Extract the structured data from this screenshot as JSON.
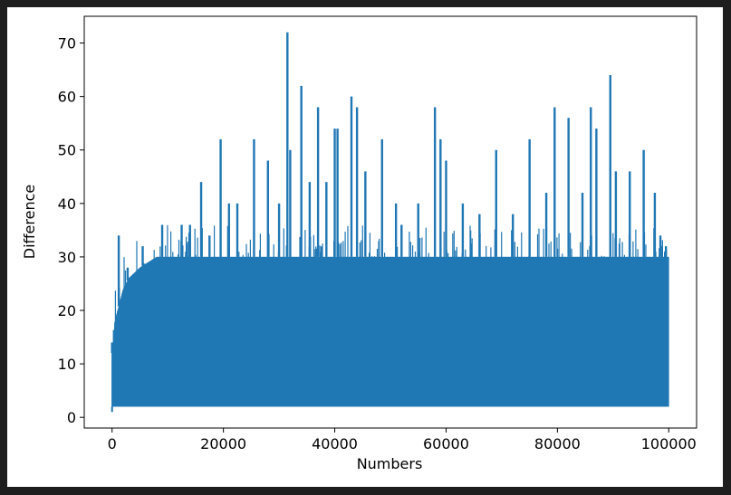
{
  "chart_data": {
    "type": "line",
    "title": "",
    "xlabel": "Numbers",
    "ylabel": "Difference",
    "xlim": [
      -5000,
      105000
    ],
    "ylim": [
      -2,
      75
    ],
    "xticks": [
      0,
      20000,
      40000,
      60000,
      80000,
      100000
    ],
    "yticks": [
      0,
      10,
      20,
      30,
      40,
      50,
      60,
      70
    ],
    "grid": false,
    "series": [
      {
        "color": "#1f77b4",
        "band": {
          "low": 2,
          "dense_upper": [
            [
              0,
              12
            ],
            [
              500,
              18
            ],
            [
              1000,
              20
            ],
            [
              2000,
              24
            ],
            [
              3000,
              26
            ],
            [
              5000,
              28
            ],
            [
              8000,
              30
            ],
            [
              100000,
              30
            ]
          ]
        },
        "peaks": [
          [
            0,
            14
          ],
          [
            1200,
            34
          ],
          [
            2800,
            28
          ],
          [
            5500,
            32
          ],
          [
            9000,
            36
          ],
          [
            12500,
            36
          ],
          [
            14000,
            36
          ],
          [
            16000,
            44
          ],
          [
            17500,
            34
          ],
          [
            19500,
            52
          ],
          [
            21000,
            40
          ],
          [
            22500,
            40
          ],
          [
            25500,
            52
          ],
          [
            28000,
            48
          ],
          [
            30000,
            40
          ],
          [
            31500,
            72
          ],
          [
            32000,
            50
          ],
          [
            34000,
            62
          ],
          [
            35500,
            44
          ],
          [
            37000,
            58
          ],
          [
            38500,
            44
          ],
          [
            40000,
            54
          ],
          [
            40500,
            54
          ],
          [
            43000,
            60
          ],
          [
            44000,
            58
          ],
          [
            45500,
            46
          ],
          [
            48500,
            52
          ],
          [
            51000,
            40
          ],
          [
            52000,
            36
          ],
          [
            55000,
            40
          ],
          [
            58000,
            58
          ],
          [
            59000,
            52
          ],
          [
            60000,
            48
          ],
          [
            63000,
            40
          ],
          [
            66000,
            38
          ],
          [
            69000,
            50
          ],
          [
            72000,
            38
          ],
          [
            75000,
            52
          ],
          [
            78000,
            42
          ],
          [
            79500,
            58
          ],
          [
            82000,
            56
          ],
          [
            84500,
            42
          ],
          [
            86000,
            58
          ],
          [
            87000,
            54
          ],
          [
            89500,
            64
          ],
          [
            90500,
            46
          ],
          [
            93000,
            46
          ],
          [
            95500,
            50
          ],
          [
            97500,
            42
          ],
          [
            98500,
            34
          ],
          [
            99500,
            32
          ]
        ]
      }
    ]
  }
}
